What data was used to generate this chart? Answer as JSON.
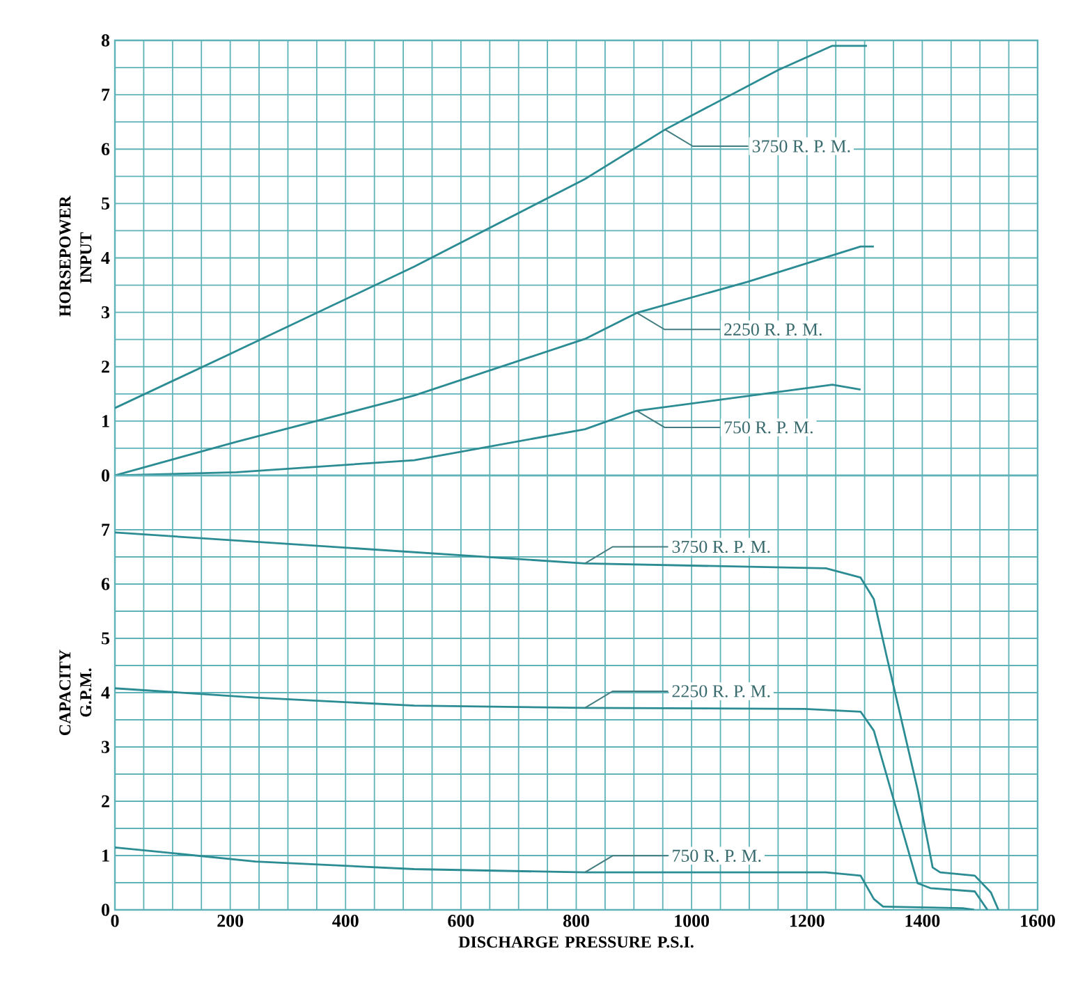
{
  "chart_data": [
    {
      "type": "line",
      "ylabel": "HORSEPOWER INPUT",
      "xlim": [
        0,
        1600
      ],
      "xticks": [
        0,
        200,
        400,
        600,
        800,
        1000,
        1200,
        1400,
        1600
      ],
      "ylim": [
        0,
        8
      ],
      "yticks": [
        0,
        1,
        2,
        3,
        4,
        5,
        6,
        7,
        8
      ],
      "grid": true,
      "tick_labels": "y",
      "series": [
        {
          "color": "#2b8c93",
          "x": [
            0,
            211,
            519,
            815,
            954,
            1151,
            1244,
            1304
          ],
          "values": [
            1.24,
            2.29,
            3.84,
            5.45,
            6.36,
            7.46,
            7.9,
            7.9
          ]
        },
        {
          "color": "#2b8c93",
          "x": [
            0,
            211,
            519,
            815,
            905,
            1097,
            1293,
            1316
          ],
          "values": [
            0.0,
            0.62,
            1.47,
            2.51,
            2.99,
            3.56,
            4.21,
            4.21
          ]
        },
        {
          "color": "#2b8c93",
          "x": [
            0,
            211,
            519,
            815,
            905,
            1041,
            1244,
            1293
          ],
          "values": [
            0.0,
            0.06,
            0.28,
            0.85,
            1.19,
            1.38,
            1.67,
            1.58
          ]
        }
      ],
      "annotations": [
        {
          "text": "3750 R. P. M.",
          "x": 954,
          "y": 6.36
        },
        {
          "text": "2250 R. P. M.",
          "x": 905,
          "y": 2.99
        },
        {
          "text": "750 R. P. M.",
          "x": 905,
          "y": 1.19
        }
      ]
    },
    {
      "type": "line",
      "xlabel": "DISCHARGE PRESSURE P.S.I.",
      "ylabel": "CAPACITY G.P.M.",
      "xlim": [
        0,
        1600
      ],
      "xticks": [
        0,
        200,
        400,
        600,
        800,
        1000,
        1200,
        1400,
        1600
      ],
      "ylim": [
        0,
        8
      ],
      "yticks": [
        0,
        1,
        2,
        3,
        4,
        5,
        6,
        7
      ],
      "grid": true,
      "series": [
        {
          "color": "#2b8c93",
          "x": [
            0,
            815,
            1233,
            1293,
            1316,
            1338,
            1392,
            1418,
            1431,
            1491,
            1519,
            1532
          ],
          "values": [
            6.95,
            6.38,
            6.29,
            6.12,
            5.72,
            4.68,
            2.21,
            0.78,
            0.69,
            0.63,
            0.32,
            0.0
          ]
        },
        {
          "color": "#2b8c93",
          "x": [
            0,
            244,
            519,
            815,
            1196,
            1293,
            1316,
            1392,
            1414,
            1491,
            1513
          ],
          "values": [
            4.08,
            3.91,
            3.76,
            3.72,
            3.7,
            3.65,
            3.3,
            0.49,
            0.4,
            0.34,
            0.0
          ]
        },
        {
          "color": "#2b8c93",
          "x": [
            0,
            244,
            519,
            815,
            1233,
            1293,
            1316,
            1332,
            1470,
            1490
          ],
          "values": [
            1.15,
            0.89,
            0.75,
            0.69,
            0.69,
            0.63,
            0.2,
            0.06,
            0.03,
            0.0
          ]
        }
      ],
      "annotations": [
        {
          "text": "3750 R. P. M.",
          "x": 815,
          "y": 6.38
        },
        {
          "text": "2250 R. P. M.",
          "x": 815,
          "y": 3.72
        },
        {
          "text": "750 R. P. M.",
          "x": 815,
          "y": 0.69
        }
      ]
    }
  ]
}
